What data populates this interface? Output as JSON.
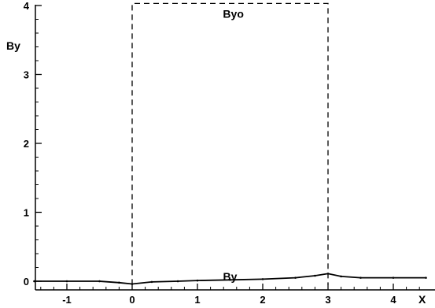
{
  "chart_data": {
    "type": "line",
    "title": "",
    "xlabel": "X",
    "ylabel": "By",
    "xlim": [
      -1.5,
      4.5
    ],
    "ylim": [
      -0.1,
      4.0
    ],
    "x_ticks": [
      {
        "value": -1,
        "label": "-1"
      },
      {
        "value": 0,
        "label": "0"
      },
      {
        "value": 1,
        "label": "1"
      },
      {
        "value": 2,
        "label": "2"
      },
      {
        "value": 3,
        "label": "3"
      },
      {
        "value": 4,
        "label": "4"
      }
    ],
    "y_ticks": [
      {
        "value": 0,
        "label": "0"
      },
      {
        "value": 1,
        "label": "1"
      },
      {
        "value": 2,
        "label": "2"
      },
      {
        "value": 3,
        "label": "3"
      },
      {
        "value": 4,
        "label": "4"
      }
    ],
    "grid": false,
    "series": [
      {
        "name": "By",
        "style": "solid",
        "color": "#000000",
        "points": [
          [
            -1.5,
            0.0
          ],
          [
            -1.0,
            0.0
          ],
          [
            -0.5,
            0.0
          ],
          [
            -0.2,
            -0.02
          ],
          [
            0.0,
            -0.04
          ],
          [
            0.3,
            -0.01
          ],
          [
            0.7,
            0.0
          ],
          [
            1.0,
            0.01
          ],
          [
            1.5,
            0.02
          ],
          [
            2.0,
            0.03
          ],
          [
            2.5,
            0.05
          ],
          [
            2.8,
            0.08
          ],
          [
            3.0,
            0.11
          ],
          [
            3.2,
            0.07
          ],
          [
            3.5,
            0.05
          ],
          [
            4.0,
            0.05
          ],
          [
            4.5,
            0.05
          ]
        ]
      },
      {
        "name": "By₀",
        "style": "dashed",
        "color": "#000000",
        "points": [
          [
            0.0,
            -0.05
          ],
          [
            0.0,
            4.03
          ],
          [
            3.0,
            4.03
          ],
          [
            3.0,
            -0.05
          ]
        ]
      }
    ],
    "annotations": [
      {
        "label": "Byo",
        "x": 1.55,
        "y": 3.88
      },
      {
        "label": "By",
        "x": 1.5,
        "y": 0.07
      }
    ]
  }
}
